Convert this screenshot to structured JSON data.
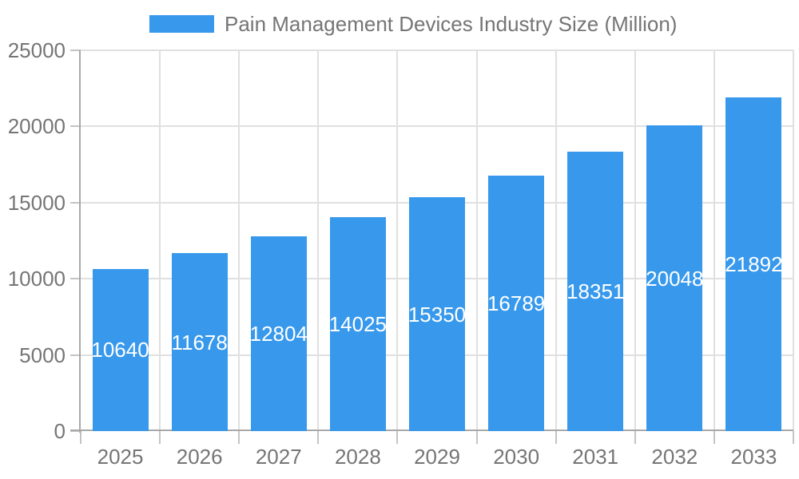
{
  "chart_data": {
    "type": "bar",
    "title": "Pain Management Devices Industry Size (Million)",
    "legend": {
      "label": "Pain Management Devices Industry Size (Million)",
      "position": "top"
    },
    "categories": [
      "2025",
      "2026",
      "2027",
      "2028",
      "2029",
      "2030",
      "2031",
      "2032",
      "2033"
    ],
    "values": [
      10640,
      11678,
      12804,
      14025,
      15350,
      16789,
      18351,
      20048,
      21892
    ],
    "xlabel": "",
    "ylabel": "",
    "ylim": [
      0,
      25000
    ],
    "yticks": [
      0,
      5000,
      10000,
      15000,
      20000,
      25000
    ],
    "grid": "both",
    "value_labels": "inside-center",
    "colors": {
      "bar": "#3899EC",
      "value_text": "#ffffff",
      "axis_text": "#757575",
      "grid_line": "#e0e0e0",
      "axis_line": "#a8a8a8",
      "tick_line": "#c4c4c4",
      "background": "#ffffff"
    }
  }
}
